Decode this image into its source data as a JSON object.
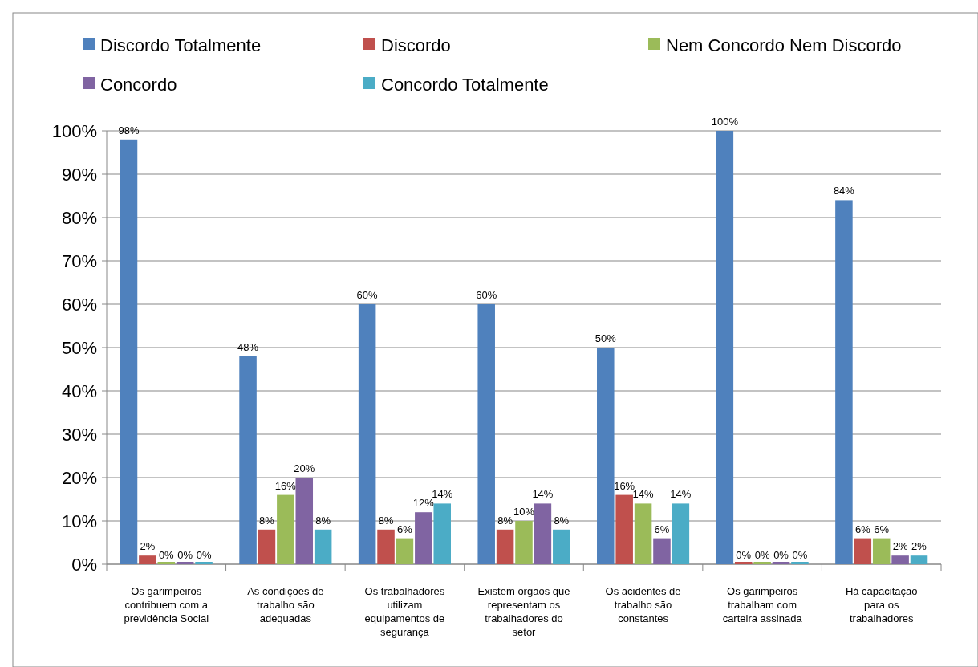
{
  "chart_data": {
    "type": "bar",
    "categories": [
      "Os garimpeiros contribuem com a previdência Social",
      "As condições de trabalho são adequadas",
      "Os trabalhadores utilizam equipamentos de segurança",
      "Existem orgãos que representam os trabalhadores do setor",
      "Os acidentes de trabalho são constantes",
      "Os garimpeiros trabalham com carteira assinada",
      "Há capacitação para os trabalhadores"
    ],
    "series": [
      {
        "name": "Discordo Totalmente",
        "color": "#4f81bd",
        "values": [
          98,
          48,
          60,
          60,
          50,
          100,
          84
        ],
        "value_labels": [
          "98%",
          "48%",
          "60%",
          "60%",
          "50%",
          "100%",
          "84%"
        ]
      },
      {
        "name": "Discordo",
        "color": "#c0504d",
        "values": [
          2,
          8,
          8,
          8,
          16,
          0,
          6
        ],
        "value_labels": [
          "2%",
          "8%",
          "8%",
          "8%",
          "16%",
          "0%",
          "6%"
        ]
      },
      {
        "name": "Nem Concordo Nem Discordo",
        "color": "#9bbb59",
        "values": [
          0,
          16,
          6,
          10,
          14,
          0,
          6
        ],
        "value_labels": [
          "0%",
          "16%",
          "6%",
          "10%",
          "14%",
          "0%",
          "6%"
        ]
      },
      {
        "name": "Concordo",
        "color": "#8064a2",
        "values": [
          0,
          20,
          12,
          14,
          6,
          0,
          2
        ],
        "value_labels": [
          "0%",
          "20%",
          "12%",
          "14%",
          "6%",
          "0%",
          "2%"
        ]
      },
      {
        "name": "Concordo Totalmente",
        "color": "#4bacc6",
        "values": [
          0,
          8,
          14,
          8,
          14,
          0,
          2
        ],
        "value_labels": [
          "0%",
          "8%",
          "14%",
          "8%",
          "14%",
          "0%",
          "2%"
        ]
      }
    ],
    "ylim": [
      0,
      100
    ],
    "yticks": [
      {
        "value": 0,
        "label": "0%"
      },
      {
        "value": 10,
        "label": "10%"
      },
      {
        "value": 20,
        "label": "20%"
      },
      {
        "value": 30,
        "label": "30%"
      },
      {
        "value": 40,
        "label": "40%"
      },
      {
        "value": 50,
        "label": "50%"
      },
      {
        "value": 60,
        "label": "60%"
      },
      {
        "value": 70,
        "label": "70%"
      },
      {
        "value": 80,
        "label": "80%"
      },
      {
        "value": 90,
        "label": "90%"
      },
      {
        "value": 100,
        "label": "100%"
      }
    ],
    "grid": "y",
    "legend": "top"
  }
}
